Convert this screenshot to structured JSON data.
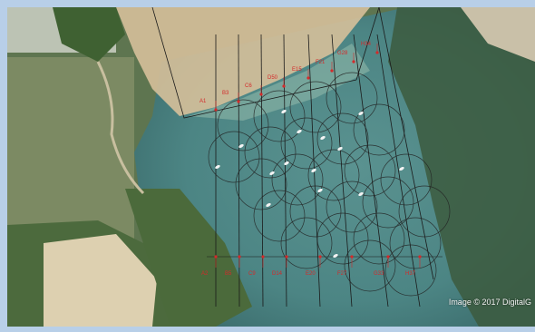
{
  "map": {
    "credit": "Image © 2017 DigitalG",
    "line_labels_top": [
      "A1",
      "B3",
      "C6",
      "D50",
      "E15",
      "F21",
      "G28",
      "H34"
    ],
    "line_labels_bottom": [
      "A2",
      "B5",
      "C9",
      "D14",
      "E20",
      "F27",
      "G33",
      "H37"
    ],
    "colors": {
      "survey_lines": "#1a1a1a",
      "circles": "#222222",
      "labels": "#d42a2a",
      "markers": "#d42a2a",
      "water": "#4f8a88",
      "sand": "#d9c4a0",
      "vegetation": "#4a6b3a",
      "frame": "#b8cfe8"
    }
  }
}
